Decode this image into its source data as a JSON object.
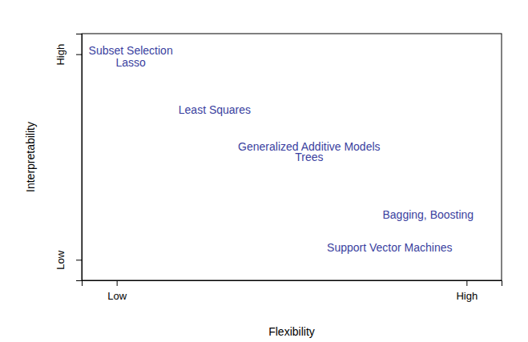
{
  "chart_data": {
    "type": "scatter",
    "marker": "text",
    "color": "#3a3fa0",
    "x_label": "Flexibility",
    "y_label": "Interpretability",
    "labels": [
      "Subset Selection",
      "Lasso",
      "Least Squares",
      "Generalized Additive Models",
      "Trees",
      "Bagging, Boosting",
      "Support Vector Machines"
    ],
    "x": [
      0.04,
      0.04,
      0.28,
      0.55,
      0.55,
      0.89,
      0.78
    ],
    "values": [
      1.02,
      0.96,
      0.73,
      0.55,
      0.5,
      0.22,
      0.06
    ],
    "xlim": [
      -0.1,
      1.1
    ],
    "ylim": [
      -0.1,
      1.1
    ],
    "xticks": [
      {
        "value": 0,
        "label": "Low"
      },
      {
        "value": 1,
        "label": "High"
      }
    ],
    "yticks": [
      {
        "value": 0,
        "label": "Low"
      },
      {
        "value": 1,
        "label": "High"
      }
    ],
    "grid": false
  }
}
